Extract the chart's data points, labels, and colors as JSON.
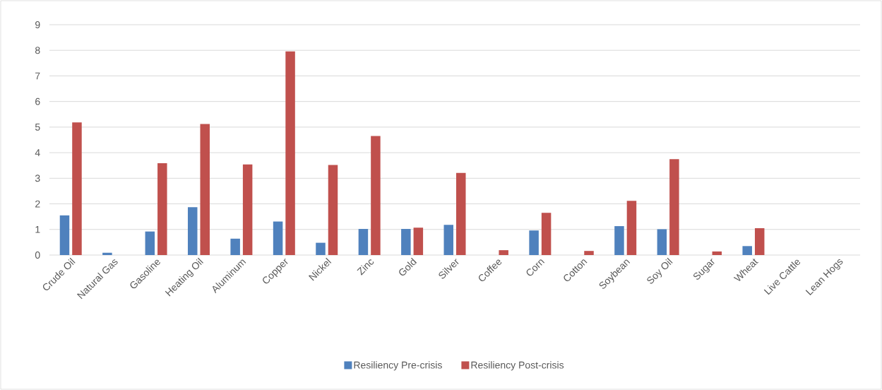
{
  "chart_data": {
    "type": "bar",
    "categories": [
      "Crude Oil",
      "Natural Gas",
      "Gasoline",
      "Heating Oil",
      "Aluminum",
      "Copper",
      "Nickel",
      "Zinc",
      "Gold",
      "Silver",
      "Coffee",
      "Corn",
      "Cotton",
      "Soybean",
      "Soy Oil",
      "Sugar",
      "Wheat",
      "Live Cattle",
      "Lean Hogs"
    ],
    "series": [
      {
        "name": "Resiliency Pre-crisis",
        "color": "#4f81bd",
        "values": [
          1.55,
          0.09,
          0.92,
          1.87,
          0.64,
          1.31,
          0.48,
          1.02,
          1.02,
          1.18,
          null,
          0.96,
          null,
          1.13,
          1.01,
          null,
          0.35,
          null,
          null
        ]
      },
      {
        "name": "Resiliency Post-crisis",
        "color": "#c0504d",
        "values": [
          5.18,
          null,
          3.59,
          5.12,
          3.54,
          7.96,
          3.52,
          4.65,
          1.07,
          3.21,
          0.19,
          1.65,
          0.16,
          2.12,
          3.75,
          0.14,
          1.05,
          null,
          null
        ]
      }
    ],
    "ylim": [
      0,
      9
    ],
    "yticks": [
      0,
      1,
      2,
      3,
      4,
      5,
      6,
      7,
      8,
      9
    ],
    "grid": "y",
    "legend": "bottom"
  }
}
